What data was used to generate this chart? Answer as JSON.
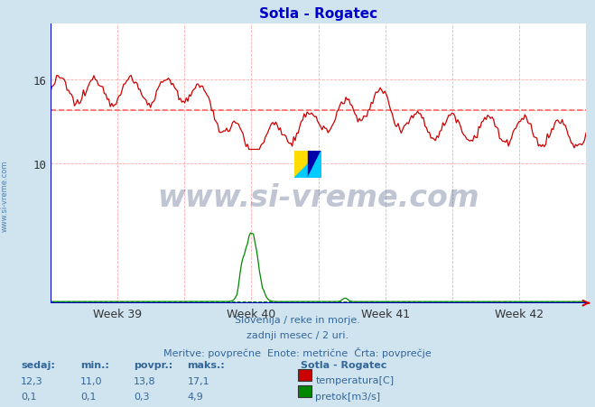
{
  "title": "Sotla - Rogatec",
  "title_color": "#0000cc",
  "bg_color": "#d0e4f0",
  "plot_bg_color": "#ffffff",
  "grid_color": "#ffaaaa",
  "xlabel_weeks": [
    "Week 39",
    "Week 40",
    "Week 41",
    "Week 42"
  ],
  "ylim_min": 0,
  "ylim_max": 20,
  "yticks": [
    10,
    16
  ],
  "avg_line_value": 13.8,
  "avg_line_color": "#ff6666",
  "temp_color": "#cc0000",
  "flow_color": "#008800",
  "flow_max": 4.9,
  "temp_min": 11.0,
  "temp_max": 17.1,
  "temp_avg": 13.8,
  "temp_curr": 12.3,
  "flow_min": 0.1,
  "flow_avg": 0.3,
  "flow_curr": 0.1,
  "axis_color": "#0000cc",
  "footer_line1": "Slovenija / reke in morje.",
  "footer_line2": "zadnji mesec / 2 uri.",
  "footer_line3": "Meritve: povprečne  Enote: metrične  Črta: povprečje",
  "footer_color": "#336699",
  "watermark_text": "www.si-vreme.com",
  "watermark_color": "#1a3060",
  "side_text": "www.si-vreme.com",
  "side_color": "#336699",
  "flow_baseline": 0.1,
  "flow_baseline_color": "#008800"
}
